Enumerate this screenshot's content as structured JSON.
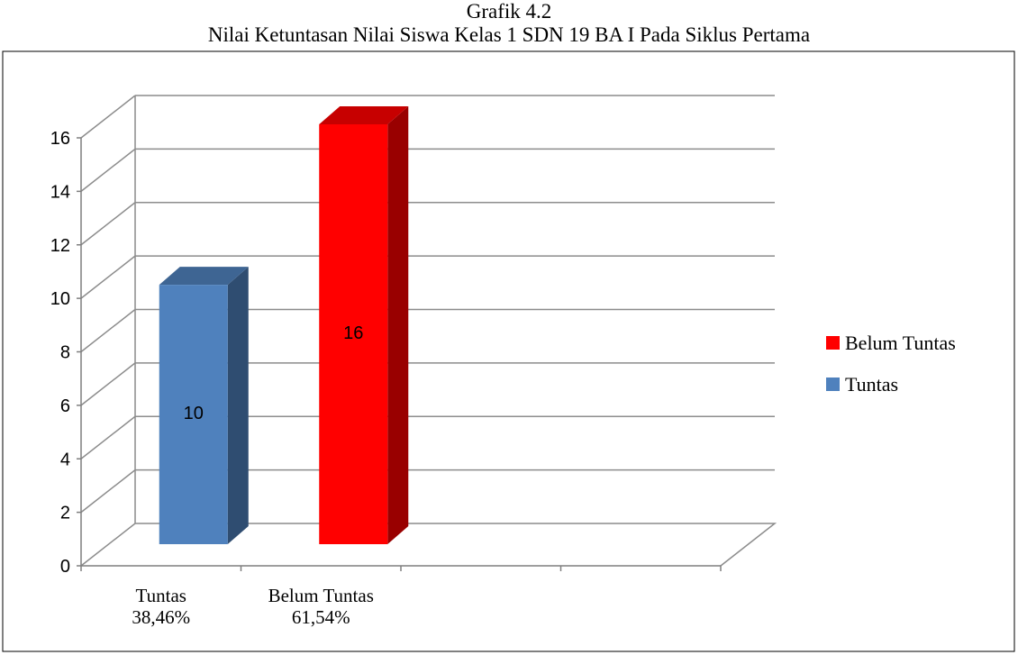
{
  "chart_data": {
    "type": "bar",
    "title": "Grafik 4.2",
    "subtitle": "Nilai Ketuntasan Nilai Siswa Kelas 1 SDN 19 BA I Pada Siklus Pertama",
    "categories": [
      {
        "line1": "Tuntas",
        "line2": "38,46%"
      },
      {
        "line1": "Belum Tuntas",
        "line2": "61,54%"
      }
    ],
    "series": [
      {
        "name": "Tuntas",
        "values": [
          10,
          null
        ],
        "color": "#4F81BD"
      },
      {
        "name": "Belum Tuntas",
        "values": [
          null,
          16
        ],
        "color": "#FF0000"
      }
    ],
    "data_labels": [
      "10",
      "16"
    ],
    "legend": [
      "Belum Tuntas",
      "Tuntas"
    ],
    "legend_position": "right",
    "ylim": [
      0,
      16
    ],
    "yticks": [
      "0",
      "2",
      "4",
      "6",
      "8",
      "10",
      "12",
      "14",
      "16"
    ],
    "grid": true,
    "style": "3d"
  }
}
